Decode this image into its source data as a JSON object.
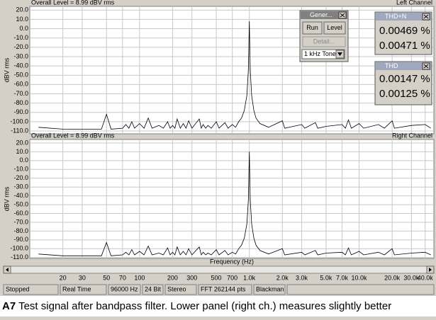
{
  "chart_data": [
    {
      "type": "line",
      "title": "Overall Level = 8.99 dBV rms",
      "subtitle": "Left Channel",
      "y_label": "dBV rms",
      "log_x": true,
      "grid": true,
      "xlim": [
        10,
        48000
      ],
      "ylim": [
        -113,
        24
      ],
      "xticks": [
        20,
        30,
        50,
        70,
        100,
        200,
        300,
        500,
        700,
        1000,
        2000,
        3000,
        5000,
        7000,
        10000,
        20000,
        30000,
        40000
      ],
      "yticks": [
        {
          "value": 20,
          "label": "20.0"
        },
        {
          "value": 10,
          "label": "10.0"
        },
        {
          "value": 0,
          "label": "0.0"
        },
        {
          "value": -10,
          "label": "-10.0"
        },
        {
          "value": -20,
          "label": "-20.0"
        },
        {
          "value": -30,
          "label": "-30.0"
        },
        {
          "value": -40,
          "label": "-40.0"
        },
        {
          "value": -50,
          "label": "-50.0"
        },
        {
          "value": -60,
          "label": "-60.0"
        },
        {
          "value": -70,
          "label": "-70.0"
        },
        {
          "value": -80,
          "label": "-80.0"
        },
        {
          "value": -90,
          "label": "-90.0"
        },
        {
          "value": -100,
          "label": "-100.0"
        },
        {
          "value": -110,
          "label": "-110.0"
        }
      ],
      "color": "#000000",
      "x": [
        12,
        20,
        45,
        50,
        55,
        70,
        75,
        80,
        85,
        90,
        100,
        110,
        120,
        130,
        150,
        165,
        180,
        190,
        200,
        210,
        220,
        235,
        250,
        265,
        280,
        300,
        350,
        365,
        380,
        400,
        420,
        450,
        500,
        530,
        600,
        640,
        700,
        750,
        800,
        850,
        900,
        950,
        980,
        1000,
        1020,
        1050,
        1100,
        1150,
        1250,
        1500,
        2000,
        2100,
        3000,
        3200,
        4000,
        4200,
        5000,
        7000,
        7500,
        8000,
        8500,
        10000,
        11000,
        15000,
        17000,
        20000,
        21000,
        30000,
        40000,
        45000
      ],
      "values": [
        -106,
        -108,
        -108,
        -92,
        -108,
        -107,
        -103,
        -107,
        -100,
        -107,
        -102,
        -107,
        -96,
        -107,
        -104,
        -107,
        -100,
        -107,
        -104,
        -107,
        -97,
        -107,
        -102,
        -107,
        -99,
        -107,
        -97,
        -107,
        -103,
        -107,
        -104,
        -107,
        -100,
        -107,
        -101,
        -107,
        -103,
        -106,
        -100,
        -96,
        -88,
        -72,
        -45,
        8,
        -45,
        -72,
        -88,
        -96,
        -102,
        -106,
        -99,
        -107,
        -103,
        -107,
        -101,
        -107,
        -105,
        -103,
        -107,
        -98,
        -107,
        -102,
        -107,
        -103,
        -107,
        -99,
        -107,
        -104,
        -103,
        -107
      ]
    },
    {
      "type": "line",
      "title": "Overall Level = 8.99 dBV rms",
      "subtitle": "Right Channel",
      "y_label": "dBV rms",
      "x_label": "Frequency (Hz)",
      "log_x": true,
      "grid": true,
      "xlim": [
        10,
        48000
      ],
      "ylim": [
        -111,
        24
      ],
      "xticks": [
        20,
        30,
        50,
        70,
        100,
        200,
        300,
        500,
        700,
        {
          "value": 1000,
          "label": "1.0k"
        },
        {
          "value": 2000,
          "label": "2.0k"
        },
        {
          "value": 3000,
          "label": "3.0k"
        },
        {
          "value": 5000,
          "label": "5.0k"
        },
        {
          "value": 7000,
          "label": "7.0k"
        },
        {
          "value": 10000,
          "label": "10.0k"
        },
        {
          "value": 20000,
          "label": "20.0k"
        },
        {
          "value": 30000,
          "label": "30.0k"
        },
        {
          "value": 40000,
          "label": "40.0k"
        }
      ],
      "yticks": [
        {
          "value": 20,
          "label": "20.0"
        },
        {
          "value": 10,
          "label": "10.0"
        },
        {
          "value": 0,
          "label": "0.0"
        },
        {
          "value": -10,
          "label": "-10.0"
        },
        {
          "value": -20,
          "label": "-20.0"
        },
        {
          "value": -30,
          "label": "-30.0"
        },
        {
          "value": -40,
          "label": "-40.0"
        },
        {
          "value": -50,
          "label": "-50.0"
        },
        {
          "value": -60,
          "label": "-60.0"
        },
        {
          "value": -70,
          "label": "-70.0"
        },
        {
          "value": -80,
          "label": "-80.0"
        },
        {
          "value": -90,
          "label": "-90.0"
        },
        {
          "value": -100,
          "label": "-100.0"
        },
        {
          "value": -110,
          "label": "-110.0"
        }
      ],
      "color": "#000000",
      "x": [
        12,
        20,
        45,
        50,
        55,
        70,
        75,
        80,
        85,
        90,
        100,
        110,
        120,
        130,
        150,
        165,
        180,
        190,
        200,
        210,
        220,
        235,
        250,
        265,
        280,
        300,
        350,
        365,
        380,
        400,
        420,
        450,
        500,
        530,
        600,
        640,
        700,
        750,
        800,
        850,
        900,
        950,
        980,
        1000,
        1020,
        1050,
        1100,
        1150,
        1250,
        1500,
        2000,
        2100,
        3000,
        3200,
        4000,
        4200,
        5000,
        7000,
        7500,
        8000,
        8500,
        10000,
        11000,
        15000,
        17000,
        20000,
        21000,
        30000,
        40000,
        45000
      ],
      "values": [
        -106,
        -108,
        -108,
        -93,
        -108,
        -107,
        -104,
        -107,
        -101,
        -107,
        -103,
        -107,
        -97,
        -107,
        -105,
        -107,
        -99,
        -107,
        -104,
        -107,
        -98,
        -107,
        -103,
        -107,
        -100,
        -107,
        -98,
        -107,
        -104,
        -107,
        -105,
        -107,
        -101,
        -107,
        -102,
        -107,
        -104,
        -106,
        -100,
        -96,
        -88,
        -72,
        -45,
        10,
        -45,
        -72,
        -88,
        -96,
        -102,
        -106,
        -100,
        -107,
        -104,
        -107,
        -102,
        -107,
        -105,
        -104,
        -107,
        -99,
        -107,
        -103,
        -107,
        -104,
        -107,
        -100,
        -107,
        -105,
        -104,
        -107
      ]
    }
  ],
  "generator": {
    "title": "Gener...",
    "buttons": [
      "Run",
      "Level",
      "Detail..."
    ],
    "dropdown": "1 kHz Tone"
  },
  "thd_n": {
    "title": "THD+N",
    "readings": [
      "0.00469 %",
      "0.00471 %"
    ]
  },
  "thd": {
    "title": "THD",
    "readings": [
      "0.00147 %",
      "0.00125 %"
    ]
  },
  "status_bar": [
    "Stopped",
    "Real Time",
    "96000 Hz",
    "24 Bit",
    "Stereo",
    "FFT 262144 pts",
    "Blackman"
  ],
  "caption": {
    "label": "A7",
    "text": "Test signal after bandpass filter. Lower panel (right ch.) measures slightly better"
  }
}
